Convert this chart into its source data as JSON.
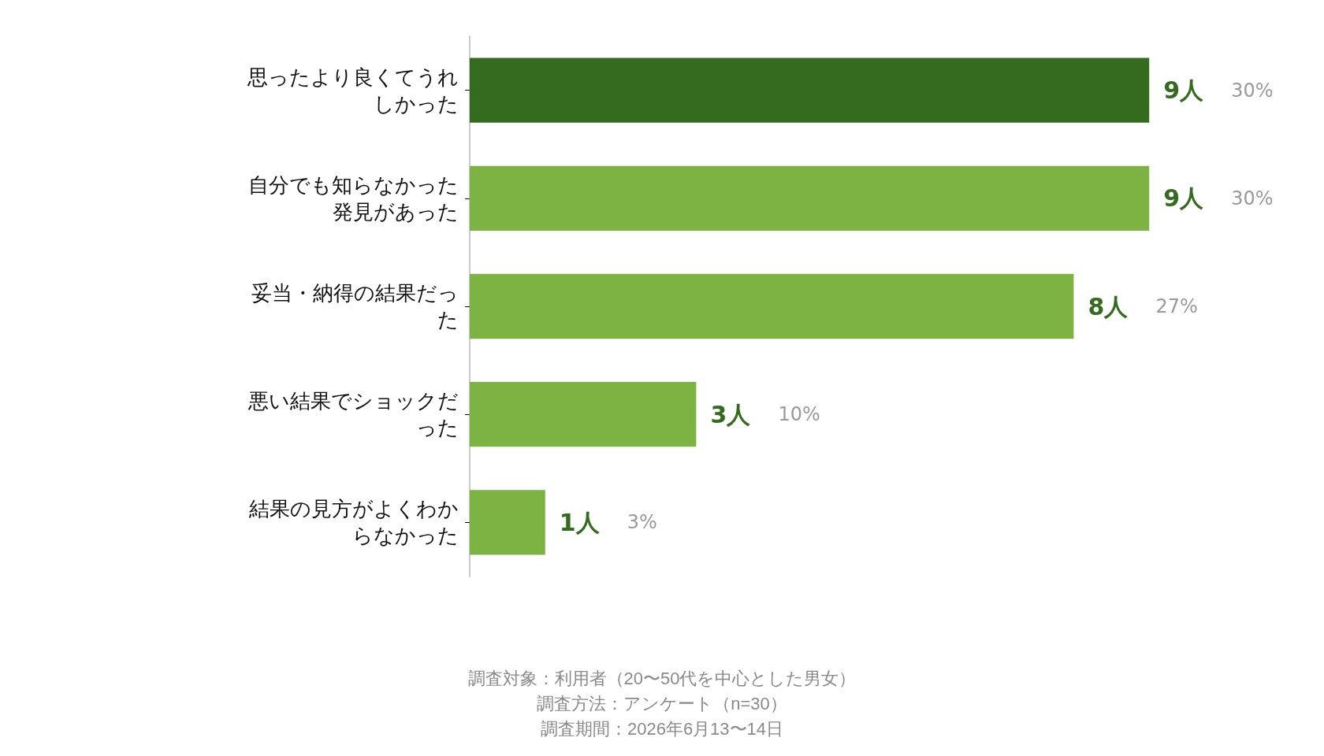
{
  "chart_data": {
    "type": "bar",
    "orientation": "horizontal",
    "categories": [
      "思ったより良くてうれしかった",
      "自分でも知らなかった発見があった",
      "妥当・納得の結果だった",
      "悪い結果でショックだった",
      "結果の見方がよくわからなかった"
    ],
    "values": [
      9,
      9,
      8,
      3,
      1
    ],
    "colors": [
      "#346b1f",
      "#7db343",
      "#7db343",
      "#7db343",
      "#7db343"
    ],
    "value_labels": [
      "9人 30%",
      "9人 30%",
      "8人 27%",
      "3人 10%",
      "1人 3%"
    ],
    "annotations": [
      "調査対象：利用者（20〜50代を中心とした男女）",
      "調査方法：アンケート（n=30）",
      "調査期間：2026年6月13〜14日"
    ]
  }
}
